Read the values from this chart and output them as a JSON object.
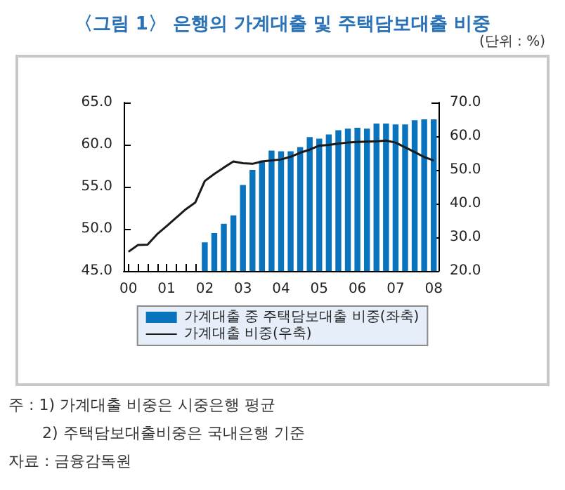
{
  "chart_data": {
    "type": "bar",
    "title": "〈그림 1〉 은행의 가계대출 및 주택담보대출 비중",
    "annotations": [
      "(단위 : %)",
      "주 : 1) 가계대출 비중은 시중은행 평균",
      "2) 주택담보대출비중은 국내은행 기준",
      "자료 : 금융감독원"
    ],
    "categories": [
      "00",
      null,
      null,
      null,
      "01",
      null,
      null,
      null,
      "02",
      null,
      null,
      null,
      "03",
      null,
      null,
      null,
      "04",
      null,
      null,
      null,
      "05",
      null,
      null,
      null,
      "06",
      null,
      null,
      null,
      "07",
      null,
      null,
      null,
      "08"
    ],
    "series": [
      {
        "name": "가계대출 중 주택담보대출 비중(좌축)",
        "color": "#0a73bd",
        "values": [
          null,
          null,
          null,
          null,
          null,
          null,
          null,
          null,
          48.4,
          49.5,
          50.6,
          51.6,
          55.2,
          57.0,
          58.1,
          59.3,
          59.2,
          59.2,
          59.7,
          60.9,
          60.7,
          61.2,
          61.7,
          61.9,
          62.0,
          61.9,
          62.5,
          62.5,
          62.4,
          62.4,
          62.9,
          63.0,
          63.0
        ]
      },
      {
        "name": "가계대출 비중(우축)",
        "type": "line",
        "axis": "y2",
        "color": "#1a1a1a",
        "values": [
          25.7,
          27.7,
          27.8,
          30.9,
          33.3,
          35.8,
          38.3,
          40.3,
          46.7,
          48.8,
          50.7,
          52.5,
          52.0,
          51.8,
          52.5,
          52.8,
          53.1,
          53.9,
          55.1,
          56.0,
          57.2,
          57.4,
          57.8,
          58.1,
          58.3,
          58.4,
          58.5,
          58.7,
          58.1,
          56.7,
          55.3,
          53.8,
          52.8
        ]
      }
    ],
    "ylim": [
      45,
      65
    ],
    "yticks": [
      {
        "value": 45,
        "label": "45.0"
      },
      {
        "value": 50,
        "label": "50.0"
      },
      {
        "value": 55,
        "label": "55.0"
      },
      {
        "value": 60,
        "label": "60.0"
      },
      {
        "value": 65,
        "label": "65.0"
      }
    ],
    "y2lim": [
      20,
      70
    ],
    "y2ticks": [
      {
        "value": 20,
        "label": "20.0"
      },
      {
        "value": 30,
        "label": "30.0"
      },
      {
        "value": 40,
        "label": "40.0"
      },
      {
        "value": 50,
        "label": "50.0"
      },
      {
        "value": 60,
        "label": "60.0"
      },
      {
        "value": 70,
        "label": "70.0"
      }
    ],
    "grid": false,
    "legend": "bottom",
    "marker": "none",
    "line_style": "solid"
  }
}
